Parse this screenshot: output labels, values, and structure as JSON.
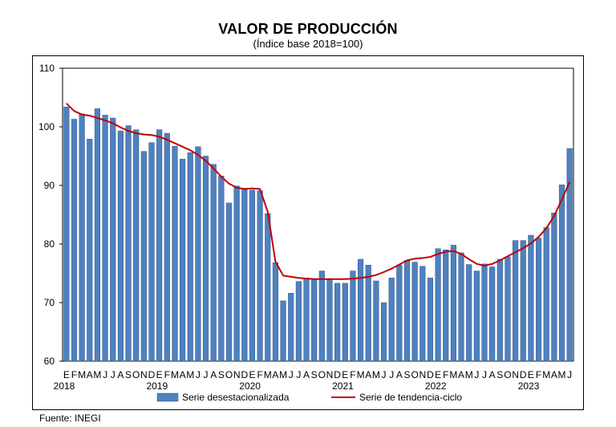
{
  "chart_data": {
    "type": "bar",
    "title": "VALOR DE PRODUCCIÓN",
    "subtitle": "(Índice base 2018=100)",
    "ylim": [
      60,
      110
    ],
    "yticks": [
      "60",
      "70",
      "80",
      "90",
      "100",
      "110"
    ],
    "month_labels": [
      "E",
      "F",
      "M",
      "A",
      "M",
      "J",
      "J",
      "A",
      "S",
      "O",
      "N",
      "D",
      "E",
      "F",
      "M",
      "A",
      "M",
      "J",
      "J",
      "A",
      "S",
      "O",
      "N",
      "D",
      "E",
      "F",
      "M",
      "A",
      "M",
      "J",
      "J",
      "A",
      "S",
      "O",
      "N",
      "D",
      "E",
      "F",
      "M",
      "A",
      "M",
      "J",
      "J",
      "A",
      "S",
      "O",
      "N",
      "D",
      "E",
      "F",
      "M",
      "A",
      "M",
      "J",
      "J",
      "A",
      "S",
      "O",
      "N",
      "D",
      "E",
      "F",
      "M",
      "A",
      "M",
      "J"
    ],
    "year_labels": [
      {
        "year": "2018",
        "index": 0
      },
      {
        "year": "2019",
        "index": 12
      },
      {
        "year": "2020",
        "index": 24
      },
      {
        "year": "2021",
        "index": 36
      },
      {
        "year": "2022",
        "index": 48
      },
      {
        "year": "2023",
        "index": 60
      }
    ],
    "series": [
      {
        "name": "Serie desestacionalizada",
        "type": "bar",
        "color": "#4f81bd",
        "values": [
          103.4,
          101.3,
          102.2,
          97.9,
          103.1,
          102.0,
          101.5,
          99.3,
          100.2,
          99.5,
          95.8,
          97.3,
          99.5,
          98.9,
          96.7,
          94.5,
          95.6,
          96.6,
          95.0,
          93.6,
          91.6,
          87.0,
          89.9,
          89.5,
          89.2,
          89.1,
          85.2,
          76.8,
          70.3,
          71.6,
          73.6,
          74.2,
          74.1,
          75.4,
          74.0,
          73.3,
          73.3,
          75.4,
          77.4,
          76.4,
          73.7,
          70.0,
          74.2,
          76.4,
          77.2,
          76.9,
          76.2,
          74.2,
          79.2,
          79.0,
          79.8,
          78.5,
          76.5,
          75.4,
          76.6,
          76.1,
          77.4,
          77.8,
          80.6,
          80.6,
          81.5,
          81.0,
          82.8,
          85.3,
          90.1,
          96.3
        ]
      },
      {
        "name": "Serie de tendencia-ciclo",
        "type": "line",
        "color": "#c00000",
        "values": [
          104.0,
          102.7,
          102.1,
          101.9,
          101.5,
          101.1,
          100.6,
          99.9,
          99.3,
          98.9,
          98.7,
          98.6,
          98.3,
          97.8,
          97.2,
          96.6,
          96.0,
          95.2,
          94.2,
          92.9,
          91.5,
          90.3,
          89.6,
          89.4,
          89.5,
          89.4,
          85.5,
          77.0,
          74.6,
          74.4,
          74.2,
          74.1,
          74.0,
          74.0,
          74.0,
          74.0,
          74.0,
          74.1,
          74.2,
          74.4,
          74.7,
          75.2,
          75.8,
          76.5,
          77.2,
          77.5,
          77.6,
          77.8,
          78.3,
          78.7,
          78.8,
          78.3,
          77.4,
          76.6,
          76.3,
          76.6,
          77.2,
          77.9,
          78.6,
          79.3,
          80.1,
          81.2,
          82.7,
          84.8,
          87.6,
          90.6
        ]
      }
    ],
    "legend_position": "bottom",
    "grid": false
  },
  "source": "Fuente: INEGI",
  "colors": {
    "bar": "#4f81bd",
    "bar_edge": "#2f5597",
    "trend": "#c00000"
  }
}
